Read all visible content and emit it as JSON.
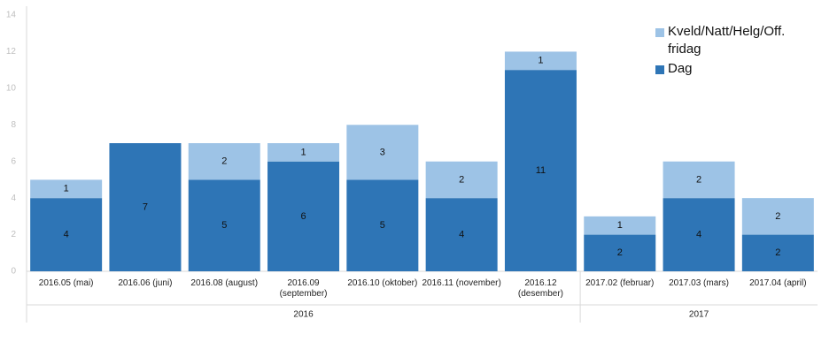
{
  "chart_data": {
    "type": "bar",
    "stacked": true,
    "categories": [
      "2016.05 (mai)",
      "2016.06 (juni)",
      "2016.08 (august)",
      "2016.09 (september)",
      "2016.10 (oktober)",
      "2016.11 (november)",
      "2016.12 (desember)",
      "2017.02 (februar)",
      "2017.03 (mars)",
      "2017.04 (april)"
    ],
    "category_groups": [
      "2016",
      "2016",
      "2016",
      "2016",
      "2016",
      "2016",
      "2016",
      "2017",
      "2017",
      "2017"
    ],
    "series": [
      {
        "name": "Dag",
        "color": "#2e75b6",
        "values": [
          4,
          7,
          5,
          6,
          5,
          4,
          11,
          2,
          4,
          2
        ]
      },
      {
        "name": "Kveld/Natt/Helg/Off. fridag",
        "color": "#9dc3e6",
        "values": [
          1,
          null,
          2,
          1,
          3,
          2,
          1,
          1,
          2,
          2
        ]
      }
    ],
    "ylim": [
      0,
      14
    ],
    "yticks": [
      0,
      2,
      4,
      6,
      8,
      10,
      12,
      14
    ],
    "grid": false,
    "legend": "top-right"
  }
}
